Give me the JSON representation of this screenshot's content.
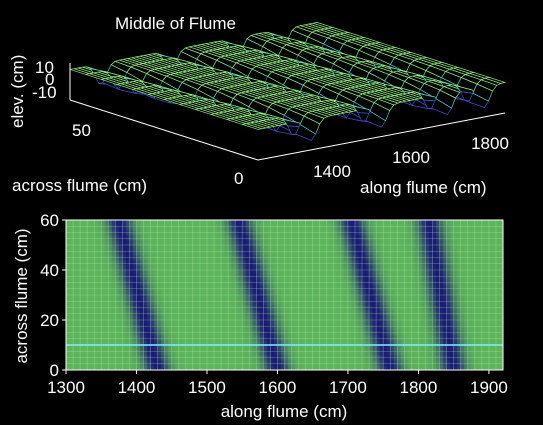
{
  "chart_data": [
    {
      "type": "surface",
      "title": "Middle of Flume",
      "xlabel": "along flume (cm)",
      "ylabel": "across flume (cm)",
      "zlabel": "elev. (cm)",
      "x_ticks": [
        "1400",
        "1600",
        "1800"
      ],
      "y_ticks": [
        "0",
        "50"
      ],
      "z_ticks": [
        "10",
        "0",
        "-10"
      ],
      "xlim": [
        1300,
        1900
      ],
      "ylim": [
        0,
        60
      ],
      "zlim": [
        -15,
        15
      ],
      "grid": true,
      "trough_centers_along_flume_at_0cm": [
        1430,
        1600,
        1760,
        1850
      ],
      "trough_centers_along_flume_at_60cm": [
        1375,
        1545,
        1705,
        1815
      ],
      "elevation_amplitude": 12
    },
    {
      "type": "heatmap",
      "title": "",
      "xlabel": "along flume (cm)",
      "ylabel": "across flume (cm)",
      "x_ticks": [
        "1300",
        "1400",
        "1500",
        "1600",
        "1700",
        "1800",
        "1900"
      ],
      "y_ticks": [
        "0",
        "20",
        "40",
        "60"
      ],
      "xlim": [
        1300,
        1920
      ],
      "ylim": [
        0,
        60
      ],
      "grid": true,
      "highlight_line_across_flume": 10,
      "trough_centers_along_flume_at_0cm": [
        1430,
        1600,
        1760,
        1850
      ],
      "trough_centers_along_flume_at_60cm": [
        1375,
        1545,
        1705,
        1815
      ]
    }
  ]
}
